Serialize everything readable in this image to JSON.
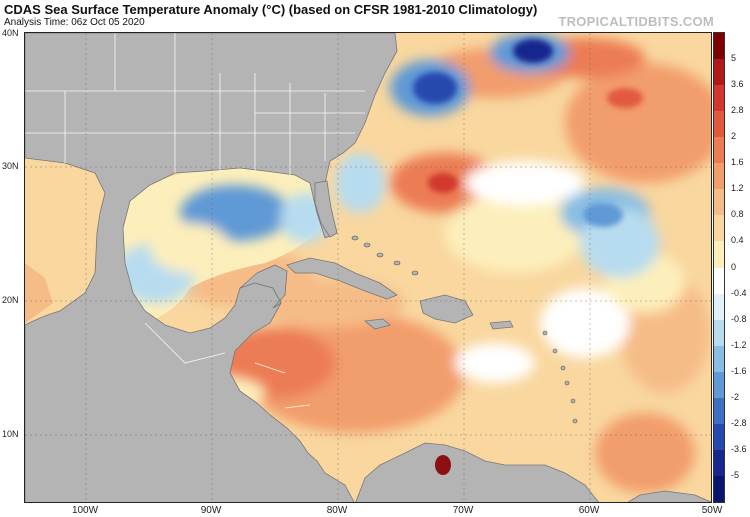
{
  "header": {
    "title": "CDAS Sea Surface Temperature Anomaly (°C) (based on CFSR 1981-2010 Climatology)",
    "analysis_time": "Analysis Time: 06z Oct 05 2020",
    "brand": "TROPICALTIDBITS.COM"
  },
  "map": {
    "lat_labels": [
      "40N",
      "30N",
      "20N",
      "10N"
    ],
    "lon_labels": [
      "100W",
      "90W",
      "80W",
      "70W",
      "60W",
      "50W"
    ],
    "colors": {
      "land": "#b4b4b4",
      "border": "#ffffff",
      "neutral_ocean": "#ffffff",
      "warm_light": "#fbe7a6",
      "warm_mid": "#f6c183",
      "warm_strong": "#ef8f5e",
      "warm_hot": "#d9503d",
      "warm_extreme": "#8c0f12",
      "cool_light": "#d7ecf7",
      "cool_mid": "#8fbfe6",
      "cool_strong": "#4e86d2",
      "cool_deep": "#1f3fa6"
    }
  },
  "colorbar": {
    "labels": [
      "5",
      "3.6",
      "2.8",
      "2",
      "1.6",
      "1.2",
      "0.8",
      "0.4",
      "0",
      "-0.4",
      "-0.8",
      "-1.2",
      "-1.6",
      "-2",
      "-2.8",
      "-3.6",
      "-5"
    ],
    "colors": [
      "#7f0000",
      "#b3191b",
      "#d2372d",
      "#e2593f",
      "#ec7c53",
      "#f29d6c",
      "#f6bc87",
      "#f9d79f",
      "#fdefbb",
      "#ffffff",
      "#e0f1f8",
      "#b7dcef",
      "#89bde3",
      "#5f99d6",
      "#3e70c6",
      "#274ab0",
      "#16278f",
      "#0a1570"
    ]
  }
}
